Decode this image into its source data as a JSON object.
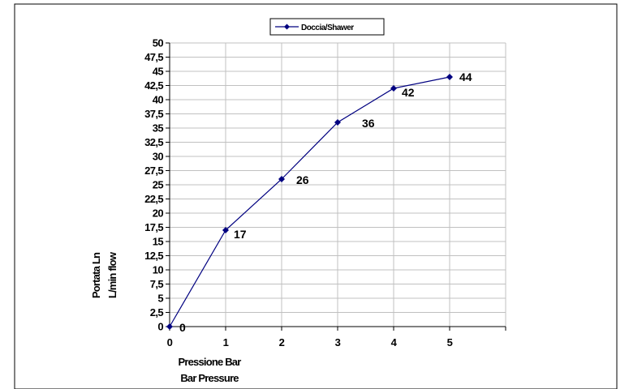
{
  "chart_data": {
    "type": "line",
    "x": [
      0,
      1,
      2,
      3,
      4,
      5
    ],
    "series": [
      {
        "name": "Doccia/Shawer",
        "values": [
          0,
          17,
          26,
          36,
          42,
          44
        ],
        "color": "#000080"
      }
    ],
    "data_labels": [
      "0",
      "17",
      "26",
      "36",
      "42",
      "44"
    ],
    "xticks": [
      "0",
      "1",
      "2",
      "3",
      "4",
      "5"
    ],
    "yticks": [
      "0",
      "2,5",
      "5",
      "7,5",
      "10",
      "12,5",
      "15",
      "17,5",
      "20",
      "22,5",
      "25",
      "27,5",
      "30",
      "32,5",
      "35",
      "37,5",
      "40",
      "42,5",
      "45",
      "47,5",
      "50"
    ],
    "xlabel": [
      "Pressione Bar",
      "Bar Pressure"
    ],
    "ylabel": [
      "Portata Ln",
      "L/min flow"
    ],
    "xlim": [
      0,
      6
    ],
    "ylim": [
      0,
      50
    ],
    "grid": true,
    "legend_position": "top"
  }
}
